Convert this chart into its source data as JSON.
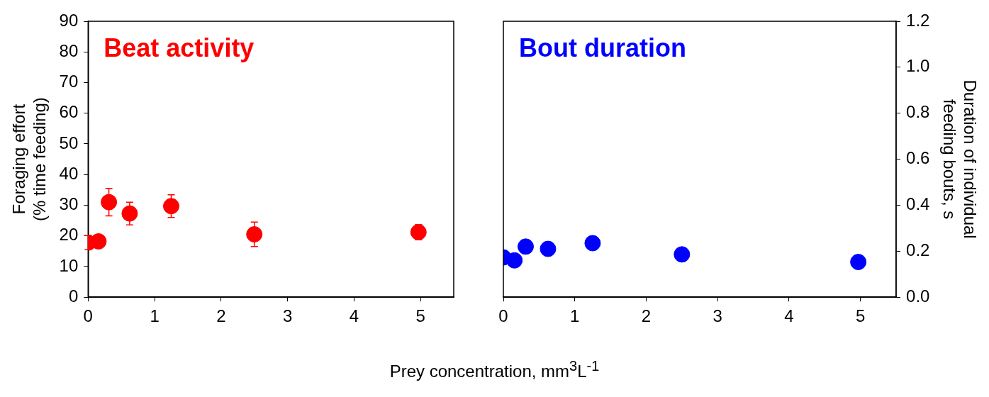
{
  "chart_data": [
    {
      "type": "scatter",
      "annotations": [
        "Beat activity"
      ],
      "ylabel": "Foraging effort (% time feeding)",
      "xlabel": "Prey concentration, mm$^{3}$L$^{-1}$",
      "xlim": [
        0,
        5.5
      ],
      "xticks": [
        0,
        1,
        2,
        3,
        4,
        5
      ],
      "ylim": [
        0,
        90
      ],
      "yticks": [
        0,
        10,
        20,
        30,
        40,
        50,
        60,
        70,
        80,
        90
      ],
      "marker": "circle",
      "grid": false,
      "legend": false,
      "series": [
        {
          "color": "#ff0000",
          "x": [
            0,
            0.156,
            0.3125,
            0.625,
            1.25,
            2.5,
            4.97
          ],
          "values": [
            17.8,
            18.2,
            31,
            27.3,
            29.7,
            20.5,
            21.2
          ],
          "errors": [
            2.3,
            null,
            4.5,
            3.7,
            3.7,
            4,
            2.5
          ]
        }
      ]
    },
    {
      "type": "scatter",
      "annotations": [
        "Bout duration"
      ],
      "y2label": "Duration of individual feeding bouts, s",
      "xlim": [
        0,
        5.5
      ],
      "xticks": [
        0,
        1,
        2,
        3,
        4,
        5
      ],
      "y2lim": [
        0,
        1.2
      ],
      "y2ticks": [
        {
          "value": 0,
          "label": "0.0"
        },
        {
          "value": 0.2,
          "label": "0.2"
        },
        {
          "value": 0.4,
          "label": "0.4"
        },
        {
          "value": 0.6,
          "label": "0.6"
        },
        {
          "value": 0.8,
          "label": "0.8"
        },
        {
          "value": 1,
          "label": "1.0"
        },
        {
          "value": 1.2,
          "label": "1.2"
        }
      ],
      "marker": "circle",
      "grid": false,
      "legend": false,
      "series": [
        {
          "color": "#0000ff",
          "axis": "y2",
          "x": [
            0,
            0.156,
            0.3125,
            0.625,
            1.25,
            2.5,
            4.97
          ],
          "values": [
            0.173,
            0.16,
            0.22,
            0.21,
            0.235,
            0.186,
            0.153
          ]
        }
      ]
    }
  ]
}
